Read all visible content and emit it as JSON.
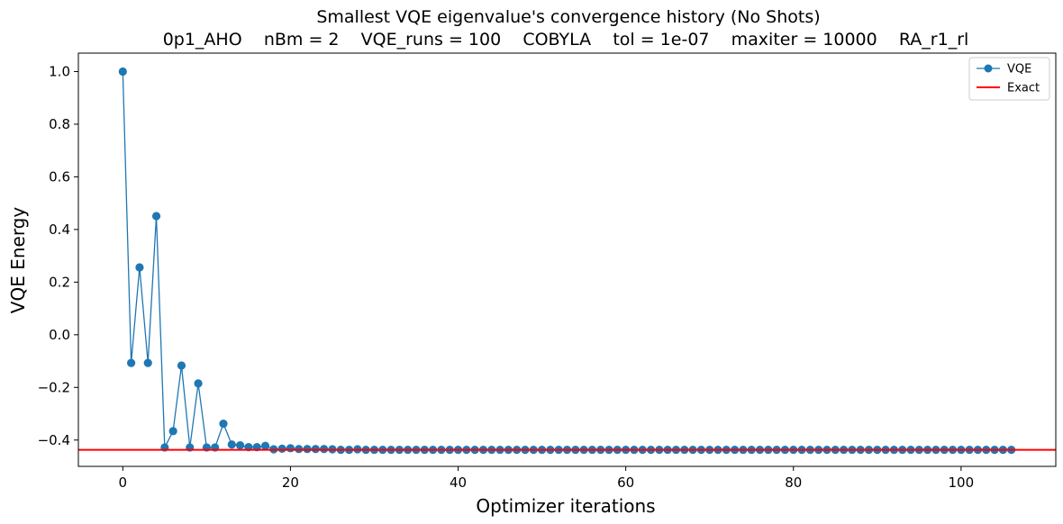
{
  "chart_data": {
    "type": "line",
    "title": "Smallest VQE eigenvalue's convergence history (No Shots)",
    "subtitle": "0p1_AHO    nBm = 2    VQE_runs = 100    COBYLA    tol = 1e-07    maxiter = 10000    RA_r1_rl",
    "xlabel": "Optimizer iterations",
    "ylabel": "VQE Energy",
    "xlim": [
      -5.3,
      111.3
    ],
    "ylim": [
      -0.5,
      1.07
    ],
    "xticks": [
      0,
      20,
      40,
      60,
      80,
      100
    ],
    "yticks": [
      -0.4,
      -0.2,
      0.0,
      0.2,
      0.4,
      0.6,
      0.8,
      1.0
    ],
    "ytick_labels": [
      "−0.4",
      "−0.2",
      "0.0",
      "0.2",
      "0.4",
      "0.6",
      "0.8",
      "1.0"
    ],
    "grid": false,
    "legend_position": "top-right",
    "series": [
      {
        "name": "VQE",
        "color": "#1f77b4",
        "marker": "circle",
        "x": [
          0,
          1,
          2,
          3,
          4,
          5,
          6,
          7,
          8,
          9,
          10,
          11,
          12,
          13,
          14,
          15,
          16,
          17,
          18,
          19,
          20,
          21,
          22,
          23,
          24,
          25,
          26,
          27,
          28,
          29,
          30,
          31,
          32,
          33,
          34,
          35,
          36,
          37,
          38,
          39,
          40,
          41,
          42,
          43,
          44,
          45,
          46,
          47,
          48,
          49,
          50,
          51,
          52,
          53,
          54,
          55,
          56,
          57,
          58,
          59,
          60,
          61,
          62,
          63,
          64,
          65,
          66,
          67,
          68,
          69,
          70,
          71,
          72,
          73,
          74,
          75,
          76,
          77,
          78,
          79,
          80,
          81,
          82,
          83,
          84,
          85,
          86,
          87,
          88,
          89,
          90,
          91,
          92,
          93,
          94,
          95,
          96,
          97,
          98,
          99,
          100,
          101,
          102,
          103,
          104,
          105,
          106
        ],
        "values": [
          1.0,
          -0.107,
          0.256,
          -0.107,
          0.451,
          -0.428,
          -0.366,
          -0.117,
          -0.428,
          -0.185,
          -0.428,
          -0.428,
          -0.338,
          -0.417,
          -0.42,
          -0.427,
          -0.427,
          -0.422,
          -0.435,
          -0.433,
          -0.431,
          -0.434,
          -0.434,
          -0.434,
          -0.434,
          -0.435,
          -0.437,
          -0.437,
          -0.435,
          -0.437,
          -0.437,
          -0.437,
          -0.437,
          -0.437,
          -0.437,
          -0.437,
          -0.437,
          -0.437,
          -0.437,
          -0.437,
          -0.437,
          -0.437,
          -0.437,
          -0.437,
          -0.437,
          -0.437,
          -0.437,
          -0.437,
          -0.437,
          -0.437,
          -0.437,
          -0.437,
          -0.437,
          -0.437,
          -0.437,
          -0.437,
          -0.437,
          -0.437,
          -0.437,
          -0.437,
          -0.437,
          -0.437,
          -0.437,
          -0.437,
          -0.437,
          -0.437,
          -0.437,
          -0.437,
          -0.437,
          -0.437,
          -0.437,
          -0.437,
          -0.437,
          -0.437,
          -0.437,
          -0.437,
          -0.437,
          -0.437,
          -0.437,
          -0.437,
          -0.437,
          -0.437,
          -0.437,
          -0.437,
          -0.437,
          -0.437,
          -0.437,
          -0.437,
          -0.437,
          -0.437,
          -0.437,
          -0.437,
          -0.437,
          -0.437,
          -0.437,
          -0.437,
          -0.437,
          -0.437,
          -0.437,
          -0.437,
          -0.437,
          -0.437,
          -0.437,
          -0.437,
          -0.437,
          -0.437,
          -0.437
        ]
      },
      {
        "name": "Exact",
        "color": "#ff0000",
        "type": "hline",
        "y": -0.437
      }
    ]
  }
}
